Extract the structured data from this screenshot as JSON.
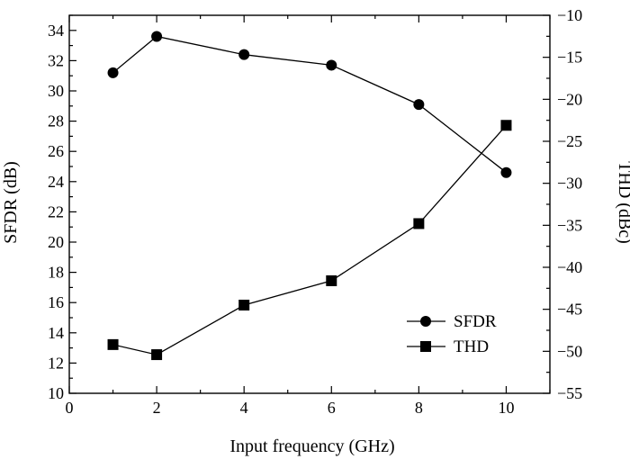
{
  "chart_data": {
    "type": "line",
    "xlabel": "Input frequency (GHz)",
    "ylabel_left": "SFDR (dB)",
    "ylabel_right": "THD (dBc)",
    "xlim": [
      0,
      11
    ],
    "ylim_left": [
      10,
      35
    ],
    "ylim_right": [
      -55,
      -10
    ],
    "xticks": [
      "0",
      "2",
      "4",
      "6",
      "8",
      "10"
    ],
    "yticks_left": [
      "10",
      "12",
      "14",
      "16",
      "18",
      "20",
      "22",
      "24",
      "26",
      "28",
      "30",
      "32",
      "34"
    ],
    "yticks_right": [
      "−10",
      "−15",
      "−20",
      "−25",
      "−30",
      "−35",
      "−40",
      "−45",
      "−50",
      "−55"
    ],
    "grid": false,
    "legend_position": "lower-right",
    "series": [
      {
        "name": "SFDR",
        "axis": "left",
        "marker": "circle",
        "x": [
          1,
          2,
          4,
          6,
          8,
          10
        ],
        "y": [
          31.2,
          33.6,
          32.4,
          31.7,
          29.1,
          24.6
        ]
      },
      {
        "name": "THD",
        "axis": "right",
        "marker": "square",
        "x": [
          1,
          2,
          4,
          6,
          8,
          10
        ],
        "y": [
          -49.2,
          -50.4,
          -44.5,
          -41.6,
          -34.8,
          -23.1
        ]
      }
    ]
  }
}
